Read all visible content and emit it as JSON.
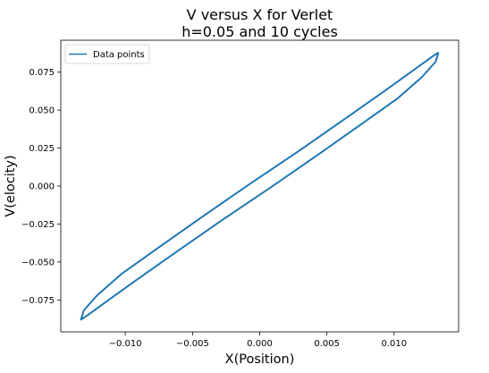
{
  "chart_data": {
    "type": "line",
    "title_line1": "V versus X for Verlet",
    "title_line2": "h=0.05 and 10 cycles",
    "xlabel": "X(Position)",
    "ylabel": "V(elocity)",
    "xlim": [
      -0.0148,
      0.0148
    ],
    "ylim": [
      -0.096,
      0.096
    ],
    "xticks": [
      -0.01,
      -0.005,
      0.0,
      0.005,
      0.01
    ],
    "xtick_labels": [
      "−0.010",
      "−0.005",
      "0.000",
      "0.005",
      "0.010"
    ],
    "yticks": [
      -0.075,
      -0.05,
      -0.025,
      0.0,
      0.025,
      0.05,
      0.075
    ],
    "ytick_labels": [
      "−0.075",
      "−0.050",
      "−0.025",
      "0.000",
      "0.025",
      "0.050",
      "0.075"
    ],
    "grid": false,
    "legend_position": "top-left",
    "series": [
      {
        "name": "Data points",
        "color": "#1f77b4",
        "x": [
          0.0133,
          0.0128,
          0.0114,
          0.0092,
          0.0063,
          0.0029,
          -0.0008,
          -0.0044,
          -0.0076,
          -0.0103,
          -0.0121,
          -0.0131,
          -0.0133,
          -0.0128,
          -0.0114,
          -0.0092,
          -0.0063,
          -0.0029,
          0.0008,
          0.0044,
          0.0076,
          0.0103,
          0.0121,
          0.0131,
          0.0133
        ],
        "y": [
          0.088,
          0.085,
          0.076,
          0.062,
          0.044,
          0.023,
          0.001,
          -0.021,
          -0.041,
          -0.058,
          -0.072,
          -0.082,
          -0.088,
          -0.085,
          -0.076,
          -0.062,
          -0.044,
          -0.023,
          -0.001,
          0.021,
          0.041,
          0.058,
          0.072,
          0.082,
          0.088
        ]
      }
    ]
  }
}
